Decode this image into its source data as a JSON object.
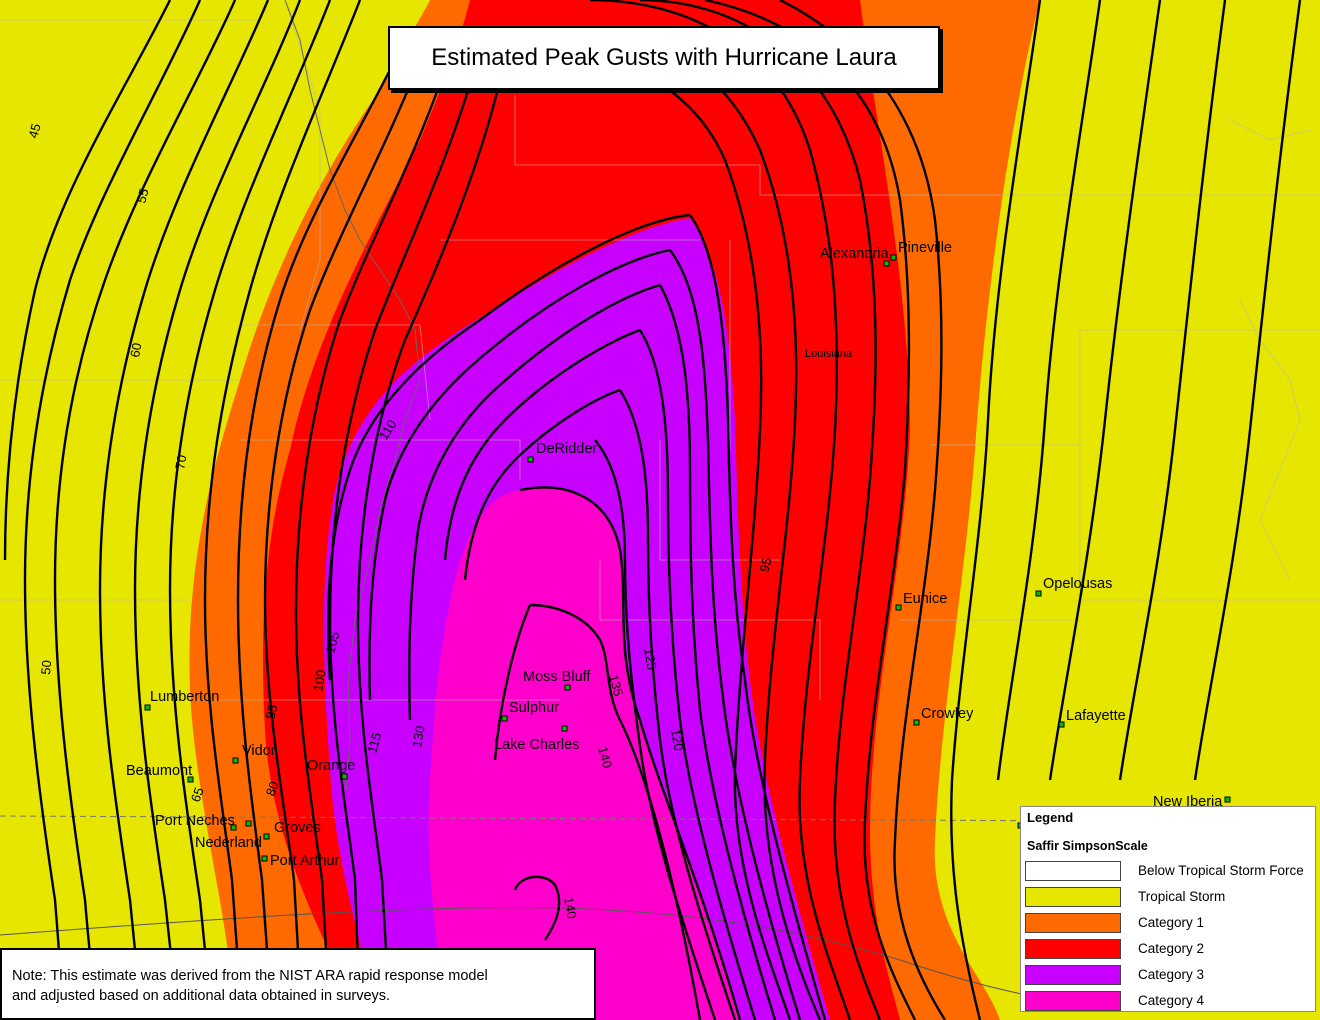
{
  "title": "Estimated Peak Gusts with Hurricane Laura",
  "note": {
    "line1": "Note: This estimate was derived from the NIST ARA rapid response model",
    "line2": "and adjusted based on additional data obtained in surveys."
  },
  "legend": {
    "title": "Legend",
    "subtitle": "Saffir SimpsonScale",
    "items": [
      {
        "label": "Below Tropical Storm Force",
        "color": "#ffffff"
      },
      {
        "label": "Tropical Storm",
        "color": "#e6e600"
      },
      {
        "label": "Category 1",
        "color": "#ff6a00"
      },
      {
        "label": "Category 2",
        "color": "#ff0000"
      },
      {
        "label": "Category 3",
        "color": "#c800ff"
      },
      {
        "label": "Category 4",
        "color": "#ff00cc"
      }
    ]
  },
  "state_label": "Louisiana",
  "cities": [
    "Alexandria",
    "Pineville",
    "DeRidder",
    "Eunice",
    "Opelousas",
    "Moss Bluff",
    "Sulphur",
    "Lake Charles",
    "Lumberton",
    "Vidor",
    "Beaumont",
    "Orange",
    "Port Neches",
    "Groves",
    "Nederland",
    "Port Arthur",
    "Crowley",
    "Lafayette",
    "New Iberia"
  ],
  "isotach_labels": [
    "45",
    "55",
    "60",
    "70",
    "50",
    "65",
    "80",
    "85",
    "100",
    "105",
    "110",
    "115",
    "130",
    "135",
    "125",
    "120",
    "140",
    "140",
    "95"
  ]
}
